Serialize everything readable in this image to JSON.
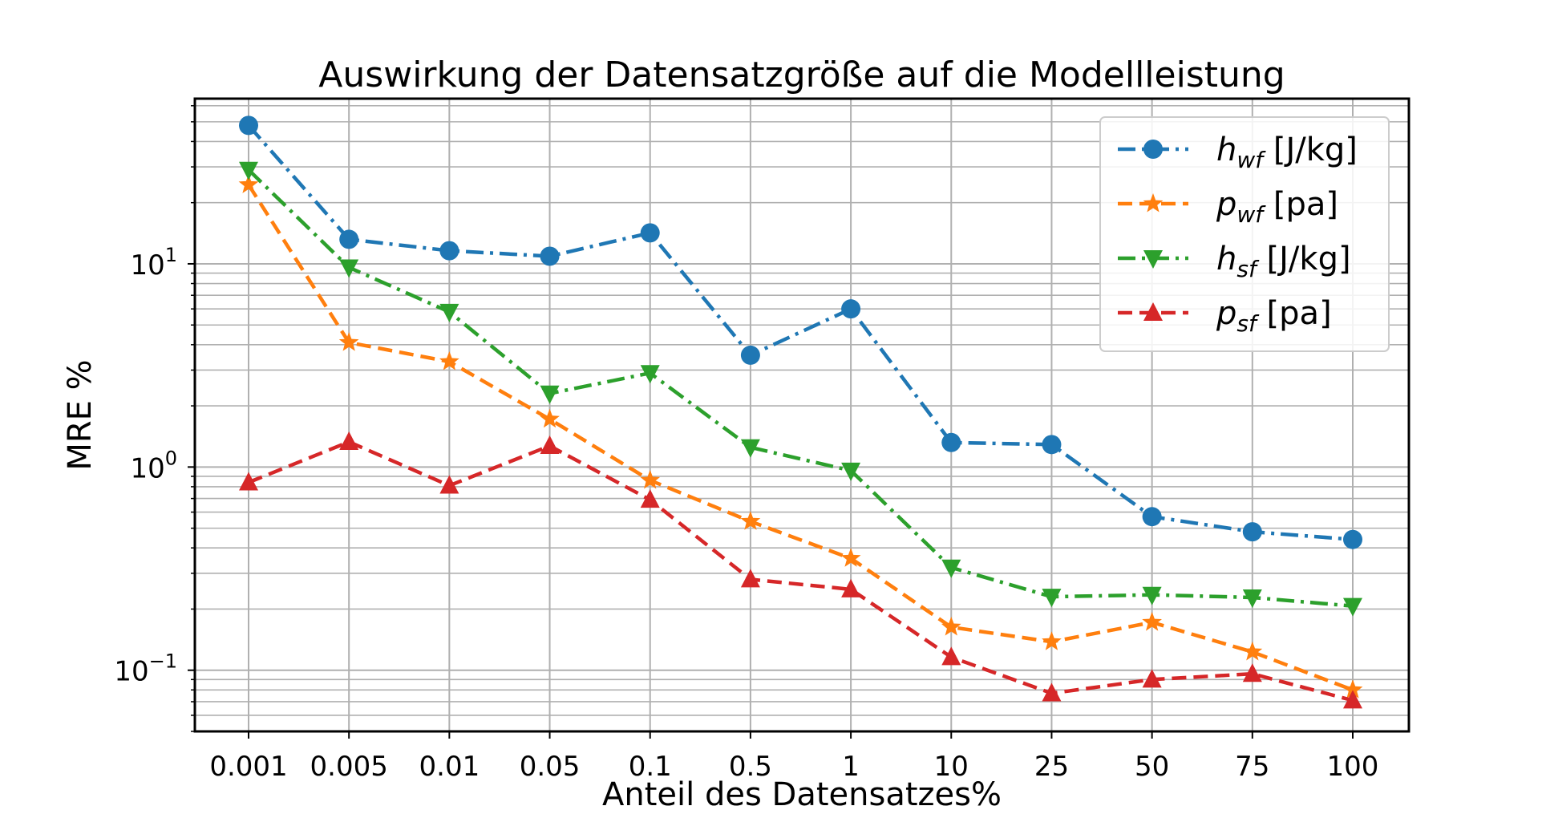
{
  "chart_data": {
    "type": "line",
    "title": "Auswirkung der Datensatzgröße auf die Modellleistung",
    "xlabel": "Anteil des Datensatzes%",
    "ylabel": "MRE %",
    "categories": [
      "0.001",
      "0.005",
      "0.01",
      "0.05",
      "0.1",
      "0.5",
      "1",
      "10",
      "25",
      "50",
      "75",
      "100"
    ],
    "yscale": "log",
    "ylim": [
      0.05,
      65
    ],
    "yticks": [
      {
        "value": 10,
        "base": "10",
        "exp": "1"
      },
      {
        "value": 1,
        "base": "10",
        "exp": "0"
      },
      {
        "value": 0.1,
        "base": "10",
        "exp": "−1"
      }
    ],
    "grid": "major and minor",
    "legend_position": "top-right",
    "series": [
      {
        "name_sym": "h",
        "name_sub": "wf",
        "name_unit": " [J/kg]",
        "color": "#1f77b4",
        "marker": "circle",
        "linestyle": "dashdot",
        "values": [
          48,
          13.2,
          11.6,
          10.9,
          14.2,
          3.55,
          6.0,
          1.32,
          1.29,
          0.57,
          0.48,
          0.44
        ]
      },
      {
        "name_sym": "p",
        "name_sub": "wf",
        "name_unit": " [pa]",
        "color": "#ff7f0e",
        "marker": "star",
        "linestyle": "dashed",
        "values": [
          24.5,
          4.1,
          3.3,
          1.72,
          0.86,
          0.54,
          0.355,
          0.163,
          0.138,
          0.172,
          0.123,
          0.08
        ]
      },
      {
        "name_sym": "h",
        "name_sub": "sf",
        "name_unit": " [J/kg]",
        "color": "#2ca02c",
        "marker": "triangle-down",
        "linestyle": "dashdot",
        "values": [
          29,
          9.6,
          5.8,
          2.3,
          2.9,
          1.25,
          0.96,
          0.32,
          0.23,
          0.235,
          0.228,
          0.207
        ]
      },
      {
        "name_sym": "p",
        "name_sub": "sf",
        "name_unit": " [pa]",
        "color": "#d62728",
        "marker": "triangle-up",
        "linestyle": "dashed",
        "values": [
          0.84,
          1.33,
          0.81,
          1.27,
          0.69,
          0.28,
          0.25,
          0.116,
          0.077,
          0.09,
          0.096,
          0.071
        ]
      }
    ]
  }
}
